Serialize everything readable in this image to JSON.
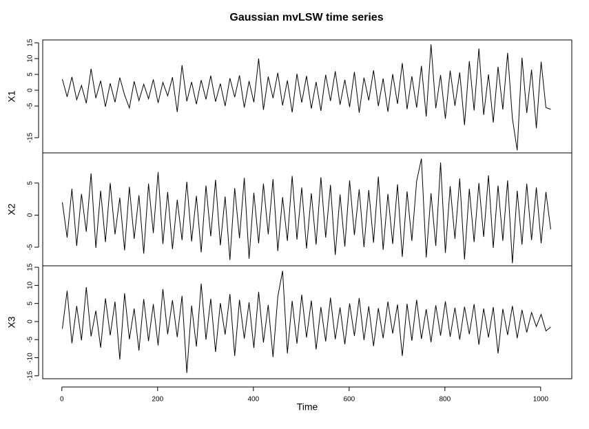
{
  "chart_data": {
    "type": "line",
    "title": "Gaussian mvLSW time series",
    "x_label": "Time",
    "x": [
      1,
      11,
      21,
      31,
      41,
      51,
      61,
      71,
      81,
      91,
      101,
      111,
      121,
      131,
      141,
      151,
      161,
      171,
      181,
      191,
      201,
      211,
      221,
      231,
      241,
      251,
      261,
      271,
      281,
      291,
      301,
      311,
      321,
      331,
      341,
      351,
      361,
      371,
      381,
      391,
      401,
      411,
      421,
      431,
      441,
      451,
      461,
      471,
      481,
      491,
      501,
      511,
      521,
      531,
      541,
      551,
      561,
      571,
      581,
      591,
      601,
      611,
      621,
      631,
      641,
      651,
      661,
      671,
      681,
      691,
      701,
      711,
      721,
      731,
      741,
      751,
      761,
      771,
      781,
      791,
      801,
      811,
      821,
      831,
      841,
      851,
      861,
      871,
      881,
      891,
      901,
      911,
      921,
      931,
      941,
      951,
      961,
      971,
      981,
      991,
      1001,
      1011,
      1021
    ],
    "xlim": [
      -40,
      1065
    ],
    "xticks": [
      0,
      200,
      400,
      600,
      800,
      1000
    ],
    "series": [
      {
        "name": "X1",
        "color": "#000000",
        "ylim": [
          -19.8,
          15.9
        ],
        "yticks": [
          -15,
          -5,
          0,
          5,
          10,
          15
        ],
        "values": [
          3.5,
          -2.1,
          4.2,
          -3.0,
          1.5,
          -4.1,
          6.8,
          -2.5,
          3.0,
          -5.2,
          2.2,
          -3.8,
          4.0,
          -1.5,
          -5.6,
          2.8,
          -3.3,
          1.9,
          -2.7,
          3.4,
          -4.0,
          2.5,
          -1.8,
          4.1,
          -6.9,
          7.9,
          -3.5,
          2.6,
          -4.4,
          3.2,
          -2.9,
          4.6,
          -3.6,
          2.1,
          -5.0,
          3.8,
          -2.2,
          4.7,
          -5.5,
          2.9,
          -3.8,
          10.0,
          -6.2,
          4.3,
          -2.5,
          5.5,
          -4.8,
          3.1,
          -7.0,
          5.2,
          -3.9,
          4.5,
          -5.8,
          2.6,
          -6.5,
          4.9,
          -3.4,
          6.0,
          -4.6,
          3.3,
          -5.3,
          5.8,
          -7.1,
          4.0,
          -3.2,
          6.3,
          -5.0,
          3.7,
          -6.8,
          5.1,
          -4.3,
          8.6,
          -6.0,
          4.4,
          -5.5,
          7.7,
          -8.3,
          14.5,
          -5.7,
          4.8,
          -9.0,
          6.2,
          -4.9,
          5.6,
          -11.0,
          9.2,
          -6.4,
          13.2,
          -7.8,
          5.0,
          -10.2,
          7.4,
          -6.1,
          11.8,
          -8.9,
          -19.0,
          10.3,
          -7.2,
          6.5,
          -12.0,
          9.0,
          -5.5,
          -6.0
        ]
      },
      {
        "name": "X2",
        "color": "#000000",
        "ylim": [
          -7.9,
          9.7
        ],
        "yticks": [
          -5,
          0,
          5
        ],
        "values": [
          2.0,
          -3.5,
          4.1,
          -4.8,
          3.3,
          -2.6,
          6.5,
          -5.1,
          3.8,
          -4.2,
          5.0,
          -3.0,
          2.7,
          -5.5,
          4.4,
          -3.7,
          3.1,
          -6.0,
          4.9,
          -2.8,
          6.7,
          -4.5,
          3.6,
          -5.3,
          2.4,
          -3.9,
          5.2,
          -4.1,
          3.0,
          -5.8,
          4.6,
          -3.3,
          5.5,
          -4.7,
          2.9,
          -7.0,
          4.2,
          -3.6,
          5.8,
          -6.8,
          3.5,
          -4.4,
          4.9,
          -3.0,
          5.6,
          -5.6,
          2.8,
          -4.0,
          6.1,
          -3.8,
          4.3,
          -5.2,
          3.4,
          -4.6,
          5.9,
          -3.5,
          4.7,
          -6.2,
          3.2,
          -4.9,
          5.4,
          -3.1,
          4.0,
          -5.0,
          3.9,
          -4.3,
          6.0,
          -5.4,
          3.3,
          -4.5,
          4.8,
          -6.5,
          3.7,
          -4.0,
          5.3,
          8.8,
          -6.6,
          3.4,
          -4.8,
          8.2,
          -5.9,
          4.5,
          -3.7,
          5.7,
          -6.9,
          4.1,
          -4.2,
          5.0,
          -3.4,
          6.2,
          -5.1,
          4.6,
          -4.0,
          5.4,
          -7.5,
          3.8,
          -4.6,
          4.9,
          -3.9,
          4.3,
          -4.4,
          3.6,
          -2.2
        ]
      },
      {
        "name": "X3",
        "color": "#000000",
        "ylim": [
          -15.8,
          15.4
        ],
        "yticks": [
          -15,
          -10,
          -5,
          0,
          5,
          10,
          15
        ],
        "values": [
          -2.0,
          8.5,
          -6.0,
          4.3,
          -5.2,
          9.5,
          -4.1,
          3.0,
          -7.2,
          6.4,
          -3.8,
          5.5,
          -10.5,
          7.8,
          -4.9,
          3.6,
          -8.0,
          6.2,
          -5.4,
          4.8,
          -6.6,
          9.0,
          -3.5,
          5.9,
          -4.3,
          7.1,
          -14.2,
          4.4,
          -6.9,
          10.5,
          -5.0,
          6.3,
          -8.4,
          5.1,
          -3.6,
          7.6,
          -9.5,
          6.0,
          -4.7,
          5.3,
          -7.3,
          8.2,
          -5.8,
          4.6,
          -9.8,
          6.9,
          14.0,
          -8.8,
          5.7,
          -6.1,
          7.4,
          -4.4,
          5.8,
          -7.7,
          4.0,
          -5.5,
          6.6,
          -4.9,
          3.9,
          -6.3,
          5.0,
          -4.0,
          6.5,
          -5.1,
          4.2,
          -6.8,
          3.7,
          -4.6,
          5.5,
          -3.3,
          4.7,
          -9.5,
          4.9,
          -5.3,
          6.0,
          -4.8,
          3.4,
          -5.7,
          4.5,
          -3.9,
          5.6,
          -4.2,
          3.8,
          -5.0,
          4.1,
          -3.5,
          4.8,
          -6.4,
          3.6,
          -4.4,
          4.0,
          -8.8,
          3.5,
          -3.7,
          4.3,
          -4.6,
          3.2,
          -3.0,
          2.5,
          -1.4,
          2.0,
          -2.6,
          -1.5
        ]
      }
    ]
  }
}
